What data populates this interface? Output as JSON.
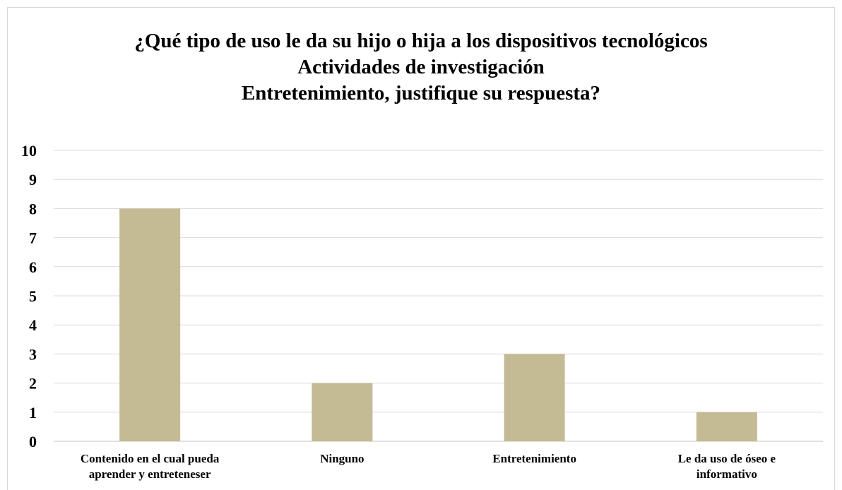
{
  "chart_data": {
    "type": "bar",
    "title_lines": [
      "¿Qué tipo de uso le da su hijo o hija a los dispositivos tecnológicos",
      "Actividades de investigación",
      "Entretenimiento, justifique su respuesta?"
    ],
    "categories": [
      [
        "Contenido en el cual pueda",
        "aprender y entreteneser"
      ],
      [
        "Ninguno"
      ],
      [
        "Entretenimiento"
      ],
      [
        "Le da uso de óseo e",
        "informativo"
      ]
    ],
    "values": [
      8,
      2,
      3,
      1
    ],
    "ylim": [
      0,
      10
    ],
    "yticks": [
      "0",
      "1",
      "2",
      "3",
      "4",
      "5",
      "6",
      "7",
      "8",
      "9",
      "10"
    ],
    "grid": true,
    "bar_color": "#c4bb95",
    "grid_color": "#d9d9d9"
  }
}
